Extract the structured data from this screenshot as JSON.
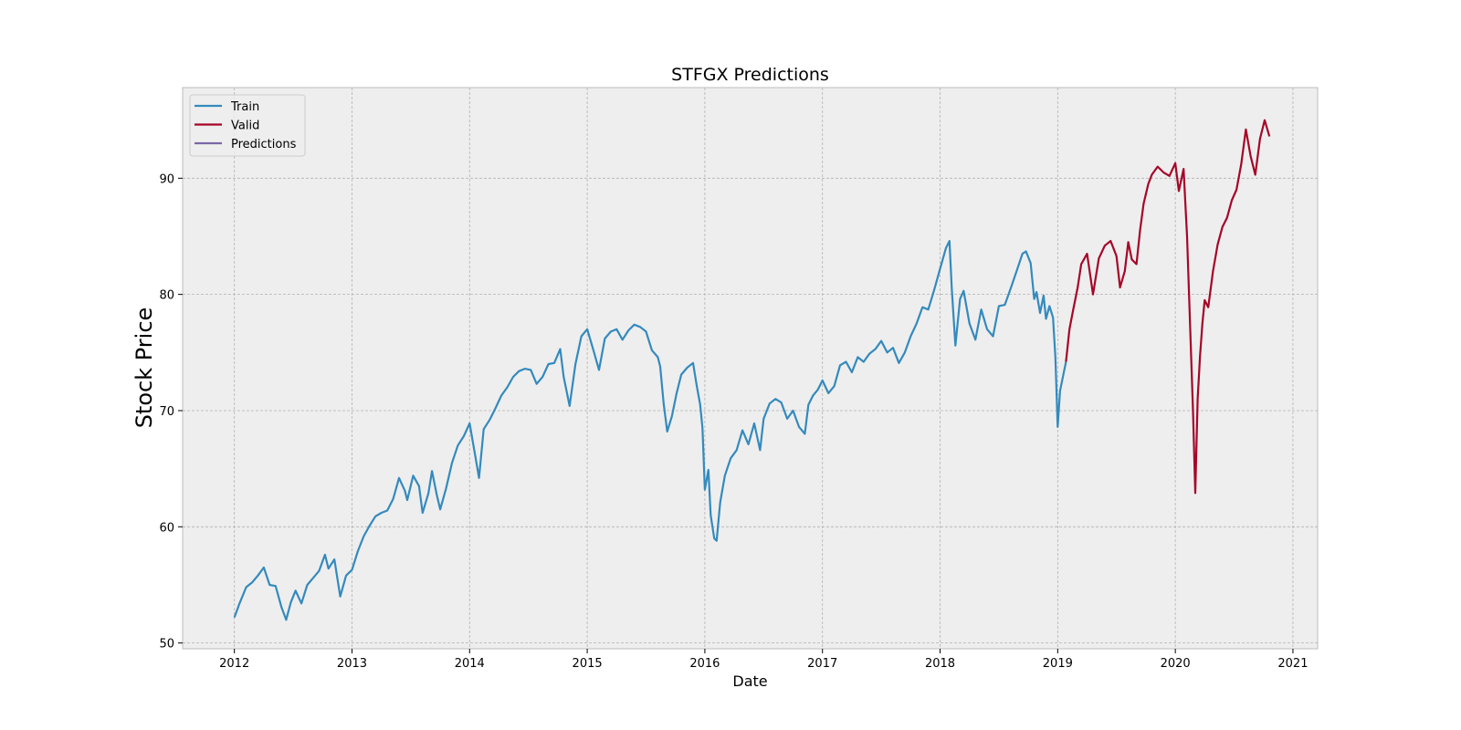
{
  "chart_data": {
    "type": "line",
    "title": "STFGX Predictions",
    "xlabel": "Date",
    "ylabel": "Stock Price",
    "xlim": [
      2011.56,
      2021.21
    ],
    "ylim": [
      49.5,
      97.8
    ],
    "xticks": [
      2012,
      2013,
      2014,
      2015,
      2016,
      2017,
      2018,
      2019,
      2020,
      2021
    ],
    "xtick_labels": [
      "2012",
      "2013",
      "2014",
      "2015",
      "2016",
      "2017",
      "2018",
      "2019",
      "2020",
      "2021"
    ],
    "yticks": [
      50,
      60,
      70,
      80,
      90
    ],
    "ytick_labels": [
      "50",
      "60",
      "70",
      "80",
      "90"
    ],
    "grid": true,
    "legend_position": "top-left",
    "series": [
      {
        "name": "Train",
        "color": "#348abd",
        "x": [
          2012.0,
          2012.04,
          2012.1,
          2012.15,
          2012.2,
          2012.25,
          2012.3,
          2012.35,
          2012.4,
          2012.44,
          2012.48,
          2012.52,
          2012.57,
          2012.62,
          2012.67,
          2012.72,
          2012.77,
          2012.8,
          2012.85,
          2012.9,
          2012.95,
          2013.0,
          2013.05,
          2013.1,
          2013.15,
          2013.2,
          2013.25,
          2013.3,
          2013.35,
          2013.4,
          2013.45,
          2013.47,
          2013.52,
          2013.57,
          2013.6,
          2013.65,
          2013.68,
          2013.72,
          2013.75,
          2013.8,
          2013.85,
          2013.9,
          2013.95,
          2014.0,
          2014.05,
          2014.08,
          2014.12,
          2014.17,
          2014.22,
          2014.27,
          2014.32,
          2014.37,
          2014.42,
          2014.47,
          2014.52,
          2014.57,
          2014.62,
          2014.67,
          2014.72,
          2014.77,
          2014.8,
          2014.85,
          2014.9,
          2014.95,
          2015.0,
          2015.05,
          2015.1,
          2015.15,
          2015.2,
          2015.25,
          2015.3,
          2015.35,
          2015.4,
          2015.45,
          2015.5,
          2015.55,
          2015.6,
          2015.62,
          2015.65,
          2015.68,
          2015.72,
          2015.76,
          2015.8,
          2015.85,
          2015.9,
          2015.93,
          2015.96,
          2015.98,
          2016.0,
          2016.03,
          2016.05,
          2016.08,
          2016.1,
          2016.13,
          2016.17,
          2016.22,
          2016.27,
          2016.32,
          2016.37,
          2016.42,
          2016.47,
          2016.5,
          2016.55,
          2016.6,
          2016.65,
          2016.7,
          2016.75,
          2016.8,
          2016.85,
          2016.88,
          2016.92,
          2016.96,
          2017.0,
          2017.05,
          2017.1,
          2017.15,
          2017.2,
          2017.25,
          2017.3,
          2017.35,
          2017.4,
          2017.45,
          2017.5,
          2017.55,
          2017.6,
          2017.65,
          2017.7,
          2017.75,
          2017.8,
          2017.85,
          2017.9,
          2017.95,
          2018.0,
          2018.05,
          2018.08,
          2018.1,
          2018.13,
          2018.17,
          2018.2,
          2018.25,
          2018.3,
          2018.35,
          2018.4,
          2018.45,
          2018.5,
          2018.55,
          2018.6,
          2018.65,
          2018.7,
          2018.73,
          2018.77,
          2018.8,
          2018.82,
          2018.85,
          2018.88,
          2018.9,
          2018.93,
          2018.96,
          2018.98,
          2019.0,
          2019.02,
          2019.05,
          2019.07
        ],
        "values": [
          52.2,
          53.3,
          54.8,
          55.2,
          55.8,
          56.5,
          55.0,
          54.9,
          53.1,
          52.0,
          53.5,
          54.5,
          53.4,
          55.0,
          55.6,
          56.2,
          57.6,
          56.4,
          57.2,
          54.0,
          55.8,
          56.3,
          57.9,
          59.2,
          60.1,
          60.9,
          61.2,
          61.4,
          62.4,
          64.2,
          63.1,
          62.3,
          64.4,
          63.5,
          61.2,
          62.9,
          64.8,
          62.8,
          61.5,
          63.3,
          65.5,
          67.0,
          67.8,
          68.9,
          66.0,
          64.2,
          68.4,
          69.2,
          70.2,
          71.3,
          72.0,
          72.9,
          73.4,
          73.6,
          73.5,
          72.3,
          72.9,
          74.0,
          74.1,
          75.3,
          72.9,
          70.4,
          74.0,
          76.4,
          77.0,
          75.3,
          73.5,
          76.2,
          76.8,
          77.0,
          76.1,
          76.9,
          77.4,
          77.2,
          76.8,
          75.2,
          74.6,
          73.8,
          70.6,
          68.2,
          69.5,
          71.5,
          73.1,
          73.7,
          74.1,
          72.2,
          70.5,
          68.5,
          63.2,
          64.9,
          61.0,
          59.0,
          58.8,
          62.1,
          64.4,
          65.9,
          66.6,
          68.3,
          67.1,
          68.9,
          66.6,
          69.3,
          70.6,
          71.0,
          70.7,
          69.3,
          70.0,
          68.6,
          68.0,
          70.5,
          71.3,
          71.8,
          72.6,
          71.5,
          72.1,
          73.9,
          74.2,
          73.3,
          74.6,
          74.2,
          74.9,
          75.3,
          76.0,
          75.0,
          75.4,
          74.1,
          75.0,
          76.4,
          77.5,
          78.9,
          78.7,
          80.4,
          82.2,
          84.0,
          84.6,
          80.4,
          75.6,
          79.6,
          80.3,
          77.5,
          76.1,
          78.7,
          77.0,
          76.4,
          79.0,
          79.1,
          80.5,
          82.0,
          83.5,
          83.7,
          82.7,
          79.6,
          80.2,
          78.4,
          79.9,
          77.9,
          79.0,
          78.0,
          74.6,
          68.6,
          71.7,
          73.2,
          74.2
        ]
      },
      {
        "name": "Valid",
        "color": "#a60628",
        "x": [
          2019.07,
          2019.1,
          2019.13,
          2019.17,
          2019.2,
          2019.25,
          2019.3,
          2019.35,
          2019.4,
          2019.45,
          2019.5,
          2019.53,
          2019.57,
          2019.6,
          2019.63,
          2019.67,
          2019.7,
          2019.73,
          2019.77,
          2019.8,
          2019.85,
          2019.9,
          2019.95,
          2020.0,
          2020.03,
          2020.07,
          2020.1,
          2020.13,
          2020.15,
          2020.17,
          2020.19,
          2020.21,
          2020.23,
          2020.25,
          2020.28,
          2020.32,
          2020.36,
          2020.4,
          2020.44,
          2020.48,
          2020.52,
          2020.56,
          2020.6,
          2020.64,
          2020.68,
          2020.72,
          2020.76,
          2020.8
        ],
        "values": [
          74.2,
          77.0,
          78.6,
          80.6,
          82.6,
          83.5,
          80.0,
          83.1,
          84.2,
          84.6,
          83.3,
          80.6,
          82.0,
          84.5,
          83.0,
          82.6,
          85.5,
          87.8,
          89.5,
          90.3,
          91.0,
          90.5,
          90.2,
          91.3,
          88.9,
          90.8,
          85.0,
          76.0,
          70.0,
          62.9,
          71.0,
          74.7,
          77.5,
          79.5,
          78.9,
          82.0,
          84.3,
          85.8,
          86.6,
          88.1,
          89.0,
          91.2,
          94.2,
          91.9,
          90.3,
          93.4,
          95.0,
          93.6
        ]
      },
      {
        "name": "Predictions",
        "color": "#7a68a6",
        "x": [],
        "values": []
      }
    ]
  }
}
